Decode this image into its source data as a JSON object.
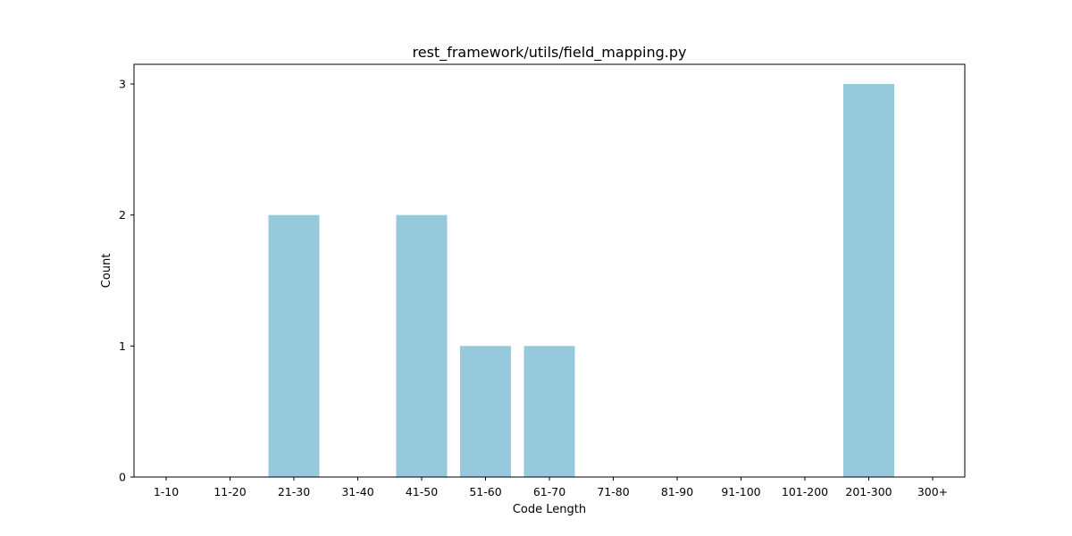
{
  "chart_data": {
    "type": "bar",
    "title": "rest_framework/utils/field_mapping.py",
    "xlabel": "Code Length",
    "ylabel": "Count",
    "categories": [
      "1-10",
      "11-20",
      "21-30",
      "31-40",
      "41-50",
      "51-60",
      "61-70",
      "71-80",
      "81-90",
      "91-100",
      "101-200",
      "201-300",
      "300+"
    ],
    "values": [
      0,
      0,
      2,
      0,
      2,
      1,
      1,
      0,
      0,
      0,
      0,
      3,
      0
    ],
    "yticks": [
      0,
      1,
      2,
      3
    ],
    "ylim": [
      0,
      3.15
    ],
    "grid": false,
    "legend": "none",
    "bar_color": "#96c9dc"
  }
}
